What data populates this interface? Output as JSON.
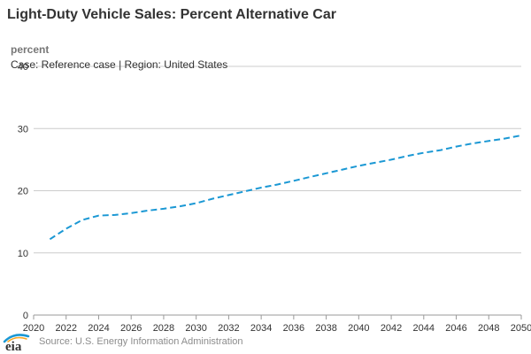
{
  "header": {
    "title": "Light-Duty Vehicle Sales: Percent Alternative Car",
    "unit": "percent",
    "subtitle": "Case: Reference case | Region: United States"
  },
  "footer": {
    "source": "Source: U.S. Energy Information Administration",
    "logo_text": "eia"
  },
  "colors": {
    "series": "#1b98d4",
    "grid": "#cccccc",
    "axis_text": "#333333"
  },
  "chart_data": {
    "type": "line",
    "x": [
      2021,
      2022,
      2023,
      2024,
      2025,
      2026,
      2027,
      2028,
      2029,
      2030,
      2031,
      2032,
      2033,
      2034,
      2035,
      2036,
      2037,
      2038,
      2039,
      2040,
      2041,
      2042,
      2043,
      2044,
      2045,
      2046,
      2047,
      2048,
      2049,
      2050
    ],
    "series": [
      {
        "values": [
          12.2,
          13.9,
          15.3,
          16.0,
          16.1,
          16.4,
          16.8,
          17.1,
          17.5,
          18.0,
          18.7,
          19.3,
          19.9,
          20.5,
          21.0,
          21.6,
          22.2,
          22.8,
          23.4,
          24.0,
          24.5,
          25.0,
          25.6,
          26.1,
          26.5,
          27.1,
          27.6,
          28.0,
          28.4,
          28.9
        ],
        "style": "dashed"
      }
    ],
    "xlim": [
      2020,
      2050
    ],
    "ylim": [
      0,
      40
    ],
    "xticks": [
      2020,
      2022,
      2024,
      2026,
      2028,
      2030,
      2032,
      2034,
      2036,
      2038,
      2040,
      2042,
      2044,
      2046,
      2048,
      2050
    ],
    "yticks": [
      0,
      10,
      20,
      30,
      40
    ],
    "grid": true,
    "legend": "none"
  }
}
